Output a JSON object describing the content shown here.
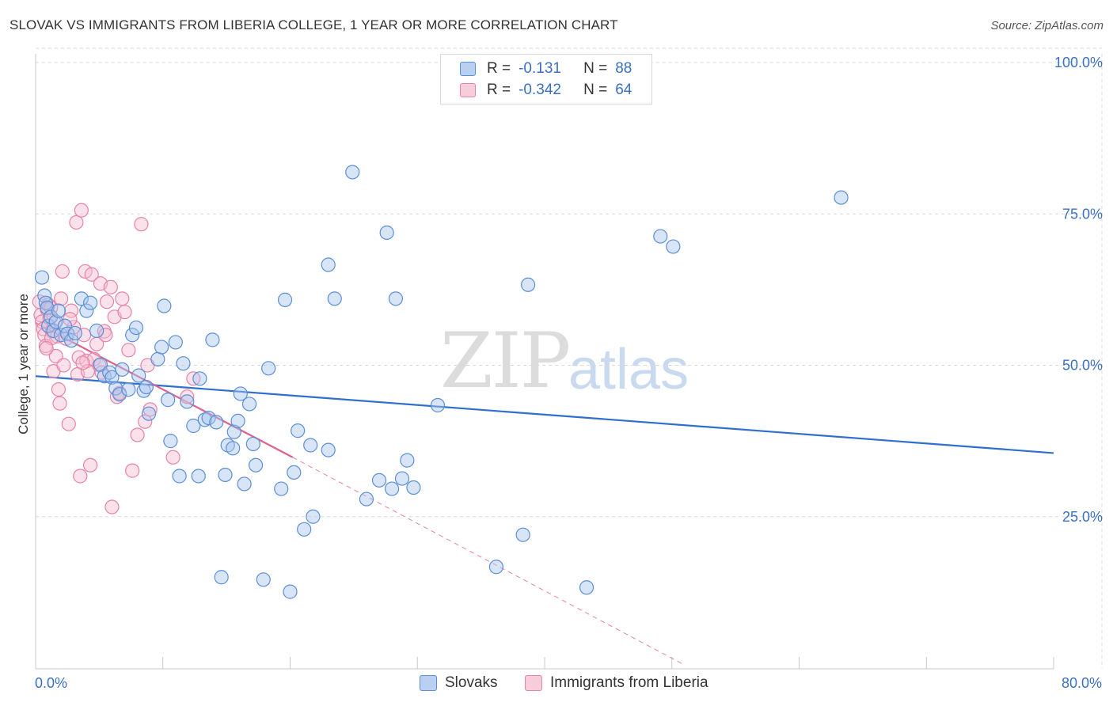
{
  "header": {
    "title": "SLOVAK VS IMMIGRANTS FROM LIBERIA COLLEGE, 1 YEAR OR MORE CORRELATION CHART",
    "source": "Source: ZipAtlas.com"
  },
  "watermark": {
    "zip": "ZIP",
    "atlas": "atlas"
  },
  "legend": {
    "rows": [
      {
        "r_label": "R =",
        "r_value": "-0.131",
        "n_label": "N =",
        "n_value": "88"
      },
      {
        "r_label": "R =",
        "r_value": "-0.342",
        "n_label": "N =",
        "n_value": "64"
      }
    ]
  },
  "bottom_legend": {
    "series1": "Slovaks",
    "series2": "Immigrants from Liberia"
  },
  "colors": {
    "blue_fill": "#a9c6ee",
    "blue_stroke": "#5b8fd6",
    "blue_line": "#2f6fd0",
    "pink_fill": "#f6bfd0",
    "pink_stroke": "#e882a8",
    "pink_line": "#e0608e",
    "grid": "#d9d9d9",
    "tick_text": "#3a6fc4"
  },
  "chart_data": {
    "type": "scatter",
    "title": "SLOVAK VS IMMIGRANTS FROM LIBERIA COLLEGE, 1 YEAR OR MORE CORRELATION CHART",
    "xlabel": "",
    "ylabel": "College, 1 year or more",
    "xlim": [
      0,
      80
    ],
    "ylim": [
      0,
      100
    ],
    "x_tick_labels": [
      "0.0%",
      "80.0%"
    ],
    "y_ticks": [
      25,
      50,
      75,
      100
    ],
    "y_tick_labels": [
      "25.0%",
      "50.0%",
      "75.0%",
      "100.0%"
    ],
    "series": [
      {
        "name": "Slovaks",
        "r": -0.131,
        "n": 88,
        "trend": {
          "x": [
            0,
            80
          ],
          "y": [
            48.2,
            35.5
          ],
          "dashed_extension": false
        },
        "points": [
          [
            0.5,
            64.5
          ],
          [
            0.7,
            61.5
          ],
          [
            0.8,
            60.3
          ],
          [
            0.9,
            59.5
          ],
          [
            1.0,
            56.5
          ],
          [
            1.2,
            58.0
          ],
          [
            1.4,
            55.7
          ],
          [
            1.6,
            57.2
          ],
          [
            1.8,
            59.0
          ],
          [
            2.0,
            55.0
          ],
          [
            2.3,
            56.5
          ],
          [
            2.5,
            55.2
          ],
          [
            2.8,
            54.1
          ],
          [
            3.1,
            55.3
          ],
          [
            3.6,
            61.0
          ],
          [
            4.0,
            59.0
          ],
          [
            4.3,
            60.3
          ],
          [
            4.8,
            55.7
          ],
          [
            5.1,
            50.1
          ],
          [
            5.4,
            48.2
          ],
          [
            5.8,
            48.8
          ],
          [
            6.0,
            48.0
          ],
          [
            6.3,
            46.2
          ],
          [
            6.6,
            45.2
          ],
          [
            6.8,
            49.3
          ],
          [
            7.3,
            46.0
          ],
          [
            7.6,
            55.0
          ],
          [
            7.9,
            56.2
          ],
          [
            8.1,
            48.3
          ],
          [
            8.5,
            45.8
          ],
          [
            8.7,
            46.4
          ],
          [
            8.9,
            42.0
          ],
          [
            9.6,
            51.0
          ],
          [
            9.9,
            53.0
          ],
          [
            10.1,
            59.8
          ],
          [
            10.4,
            44.3
          ],
          [
            10.6,
            37.5
          ],
          [
            11.0,
            53.8
          ],
          [
            11.3,
            31.7
          ],
          [
            11.6,
            50.3
          ],
          [
            11.9,
            44.0
          ],
          [
            12.4,
            40.0
          ],
          [
            12.8,
            31.7
          ],
          [
            12.9,
            47.8
          ],
          [
            13.3,
            41.0
          ],
          [
            13.6,
            41.3
          ],
          [
            13.9,
            54.2
          ],
          [
            14.2,
            40.6
          ],
          [
            14.6,
            15.0
          ],
          [
            14.9,
            31.9
          ],
          [
            15.1,
            36.8
          ],
          [
            15.5,
            36.3
          ],
          [
            15.6,
            39.0
          ],
          [
            15.9,
            40.8
          ],
          [
            16.1,
            45.3
          ],
          [
            16.4,
            30.4
          ],
          [
            16.8,
            43.6
          ],
          [
            17.1,
            37.0
          ],
          [
            17.3,
            33.5
          ],
          [
            17.9,
            14.6
          ],
          [
            18.3,
            49.5
          ],
          [
            19.3,
            29.6
          ],
          [
            19.6,
            60.8
          ],
          [
            20.0,
            12.6
          ],
          [
            20.3,
            32.3
          ],
          [
            20.6,
            39.2
          ],
          [
            21.1,
            22.9
          ],
          [
            21.6,
            36.8
          ],
          [
            21.8,
            25.0
          ],
          [
            23.0,
            36.0
          ],
          [
            23.0,
            66.6
          ],
          [
            23.5,
            61.0
          ],
          [
            24.9,
            81.9
          ],
          [
            26.0,
            27.9
          ],
          [
            27.0,
            31.0
          ],
          [
            27.6,
            71.9
          ],
          [
            28.0,
            29.6
          ],
          [
            28.3,
            61.0
          ],
          [
            28.8,
            31.3
          ],
          [
            29.2,
            34.3
          ],
          [
            29.7,
            29.8
          ],
          [
            31.6,
            43.4
          ],
          [
            36.2,
            16.7
          ],
          [
            38.3,
            22.0
          ],
          [
            38.7,
            63.3
          ],
          [
            43.3,
            13.3
          ],
          [
            49.1,
            71.3
          ],
          [
            50.1,
            69.6
          ],
          [
            63.3,
            77.7
          ]
        ]
      },
      {
        "name": "Immigrants from Liberia",
        "r": -0.342,
        "n": 64,
        "trend": {
          "x": [
            0,
            20.2
          ],
          "y": [
            57.0,
            34.8
          ],
          "dashed_extension": {
            "x": [
              20.2,
              51.0
            ],
            "y": [
              34.8,
              0.5
            ]
          }
        },
        "points": [
          [
            0.3,
            60.5
          ],
          [
            0.4,
            58.3
          ],
          [
            0.5,
            57.2
          ],
          [
            0.6,
            56.0
          ],
          [
            0.7,
            55.0
          ],
          [
            0.8,
            53.2
          ],
          [
            0.9,
            59.2
          ],
          [
            1.0,
            60.0
          ],
          [
            1.1,
            57.8
          ],
          [
            1.2,
            59.5
          ],
          [
            1.3,
            55.6
          ],
          [
            1.4,
            49.0
          ],
          [
            1.5,
            57.0
          ],
          [
            1.6,
            51.5
          ],
          [
            1.7,
            54.8
          ],
          [
            1.8,
            46.0
          ],
          [
            1.9,
            43.7
          ],
          [
            2.0,
            61.0
          ],
          [
            2.1,
            65.5
          ],
          [
            2.2,
            50.0
          ],
          [
            2.4,
            54.4
          ],
          [
            2.6,
            40.3
          ],
          [
            2.8,
            59.0
          ],
          [
            3.0,
            56.3
          ],
          [
            3.2,
            73.6
          ],
          [
            3.3,
            48.5
          ],
          [
            3.4,
            51.3
          ],
          [
            3.5,
            31.7
          ],
          [
            3.6,
            75.6
          ],
          [
            3.8,
            55.0
          ],
          [
            3.9,
            65.5
          ],
          [
            4.0,
            50.7
          ],
          [
            4.1,
            49.0
          ],
          [
            4.3,
            33.5
          ],
          [
            4.4,
            65.0
          ],
          [
            4.6,
            51.0
          ],
          [
            4.8,
            53.5
          ],
          [
            5.0,
            50.0
          ],
          [
            5.1,
            63.5
          ],
          [
            5.2,
            48.8
          ],
          [
            5.4,
            55.6
          ],
          [
            5.6,
            60.5
          ],
          [
            5.9,
            62.9
          ],
          [
            6.0,
            26.6
          ],
          [
            6.2,
            58.0
          ],
          [
            6.4,
            44.8
          ],
          [
            6.6,
            45.4
          ],
          [
            6.8,
            61.0
          ],
          [
            7.0,
            58.8
          ],
          [
            7.3,
            52.5
          ],
          [
            7.6,
            32.6
          ],
          [
            8.0,
            38.5
          ],
          [
            8.3,
            73.3
          ],
          [
            8.8,
            50.0
          ],
          [
            9.0,
            42.7
          ],
          [
            10.8,
            34.8
          ],
          [
            11.9,
            44.8
          ],
          [
            12.4,
            47.8
          ],
          [
            3.7,
            50.4
          ],
          [
            2.7,
            57.6
          ],
          [
            1.25,
            54.5
          ],
          [
            0.85,
            52.8
          ],
          [
            5.5,
            55.0
          ],
          [
            8.6,
            40.7
          ]
        ]
      }
    ],
    "grid": true,
    "legend_position": "top-center"
  }
}
